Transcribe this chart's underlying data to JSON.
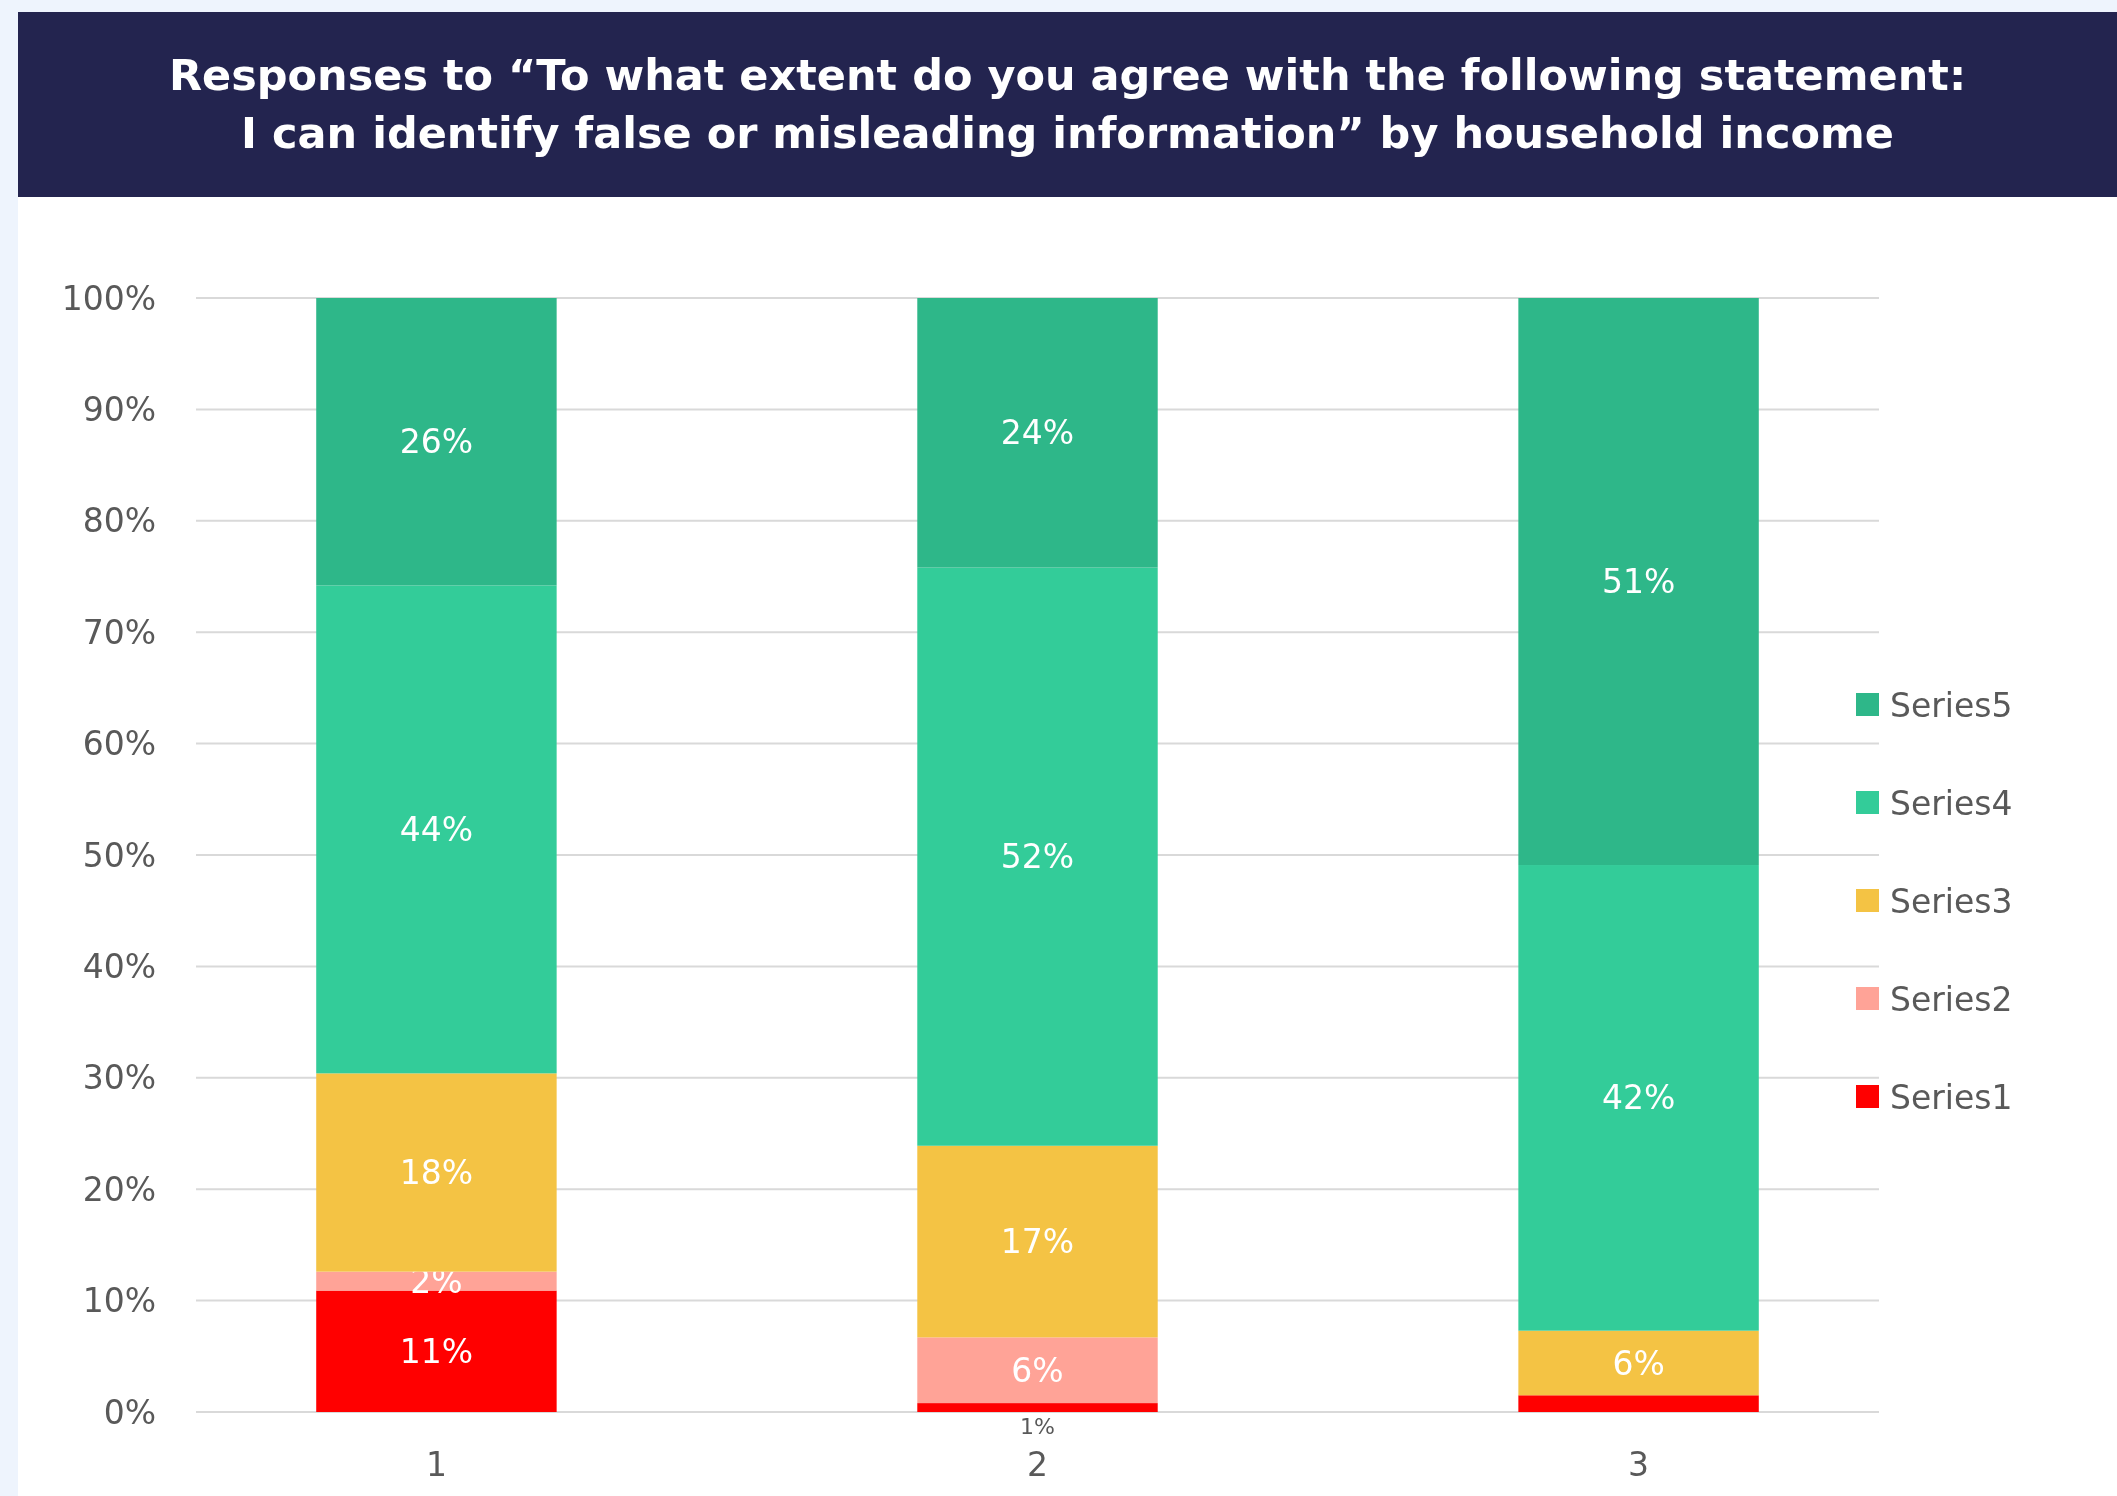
{
  "chart_data": {
    "type": "bar",
    "title": "Responses to “To what extent do you agree with the following statement:\nI can identify false or misleading information” by household income",
    "categories": [
      "1",
      "2",
      "3"
    ],
    "stacked": true,
    "series": [
      {
        "name": "Series1",
        "color": "#ff0000",
        "values": [
          10.9,
          0.8,
          1.5
        ],
        "value_labels": [
          "11%",
          "1%",
          null
        ]
      },
      {
        "name": "Series2",
        "color": "#ffa397",
        "values": [
          1.7,
          5.9,
          0
        ],
        "value_labels": [
          "2%",
          "6%",
          null
        ]
      },
      {
        "name": "Series3",
        "color": "#f4c344",
        "values": [
          17.8,
          17.2,
          5.8
        ],
        "value_labels": [
          "18%",
          "17%",
          "6%"
        ]
      },
      {
        "name": "Series4",
        "color": "#33cc99",
        "values": [
          43.8,
          51.9,
          41.8
        ],
        "value_labels": [
          "44%",
          "52%",
          "42%"
        ]
      },
      {
        "name": "Series5",
        "color": "#2eb789",
        "values": [
          25.8,
          24.2,
          50.9
        ],
        "value_labels": [
          "26%",
          "24%",
          "51%"
        ]
      }
    ],
    "ylim": [
      0,
      100
    ],
    "yticks": [
      {
        "value": 0,
        "label": "0%"
      },
      {
        "value": 10,
        "label": "10%"
      },
      {
        "value": 20,
        "label": "20%"
      },
      {
        "value": 30,
        "label": "30%"
      },
      {
        "value": 40,
        "label": "40%"
      },
      {
        "value": 50,
        "label": "50%"
      },
      {
        "value": 60,
        "label": "60%"
      },
      {
        "value": 70,
        "label": "70%"
      },
      {
        "value": 80,
        "label": "80%"
      },
      {
        "value": 90,
        "label": "90%"
      },
      {
        "value": 100,
        "label": "100%"
      }
    ],
    "grid": "y",
    "legend": "right"
  }
}
